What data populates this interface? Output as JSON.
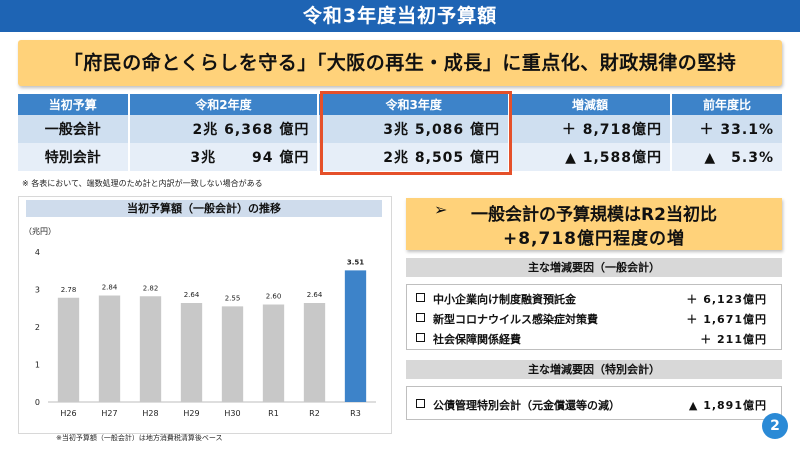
{
  "title": "令和3年度当初予算額",
  "headline": "「府民の命とくらしを守る」「大阪の再生・成長」に重点化、財政規律の堅持",
  "table": {
    "headers": [
      "当初予算",
      "令和2年度",
      "令和3年度",
      "増減額",
      "前年度比"
    ],
    "rows": [
      {
        "label": "一般会計",
        "r2": "2兆 6,368 億円",
        "r3": "3兆 5,086 億円",
        "diff": "＋ 8,718億円",
        "ratio": "＋ 33.1%"
      },
      {
        "label": "特別会計",
        "r2": "3兆　　 94 億円",
        "r3": "2兆 8,505 億円",
        "diff": "▲ 1,588億円",
        "ratio": "▲　5.3%"
      }
    ]
  },
  "note": "※ 各表において、端数処理のため計と内訳が一致しない場合がある",
  "chart_title": "当初予算額（一般会計）の推移",
  "chart_data": {
    "type": "bar",
    "title": "当初予算額（一般会計）の推移",
    "ylabel": "（兆円）",
    "xlabel": "",
    "categories": [
      "H26",
      "H27",
      "H28",
      "H29",
      "H30",
      "R1",
      "R2",
      "R3"
    ],
    "values": [
      2.78,
      2.84,
      2.82,
      2.64,
      2.55,
      2.6,
      2.64,
      3.51
    ],
    "value_labels": [
      "2.78",
      "2.84",
      "2.82",
      "2.64",
      "2.55",
      "2.60",
      "2.64",
      "3.51"
    ],
    "ylim": [
      0,
      4
    ],
    "yticks": [
      "0",
      "1",
      "2",
      "3",
      "4"
    ],
    "grid": false,
    "colors": {
      "bar": "#c8c8c8",
      "highlight": "#3d83c9"
    },
    "highlight_category": "R3"
  },
  "chart_note": "※当初予算額（一般会計）は地方消費税清算後ベース",
  "callout": {
    "line1": "一般会計の予算規模はR2当初比",
    "line2": "+8,718億円程度の増",
    "arrow": "➢"
  },
  "general_factors": {
    "heading": "主な増減要因（一般会計）",
    "items": [
      {
        "name": "中小企業向け制度融資預託金",
        "amount": "＋ 6,123億円"
      },
      {
        "name": "新型コロナウイルス感染症対策費",
        "amount": "＋ 1,671億円"
      },
      {
        "name": "社会保障関係経費",
        "amount": "＋ 211億円"
      }
    ]
  },
  "special_factors": {
    "heading": "主な増減要因（特別会計）",
    "items": [
      {
        "name": "公債管理特別会計（元金償還等の減）",
        "amount": "▲ 1,891億円"
      }
    ]
  },
  "page_number": "2",
  "colors": {
    "title_bar": "#1e64b4",
    "headline_bg": "#ffd27a",
    "table_header": "#3d83c9",
    "highlight_border": "#e5502a"
  }
}
